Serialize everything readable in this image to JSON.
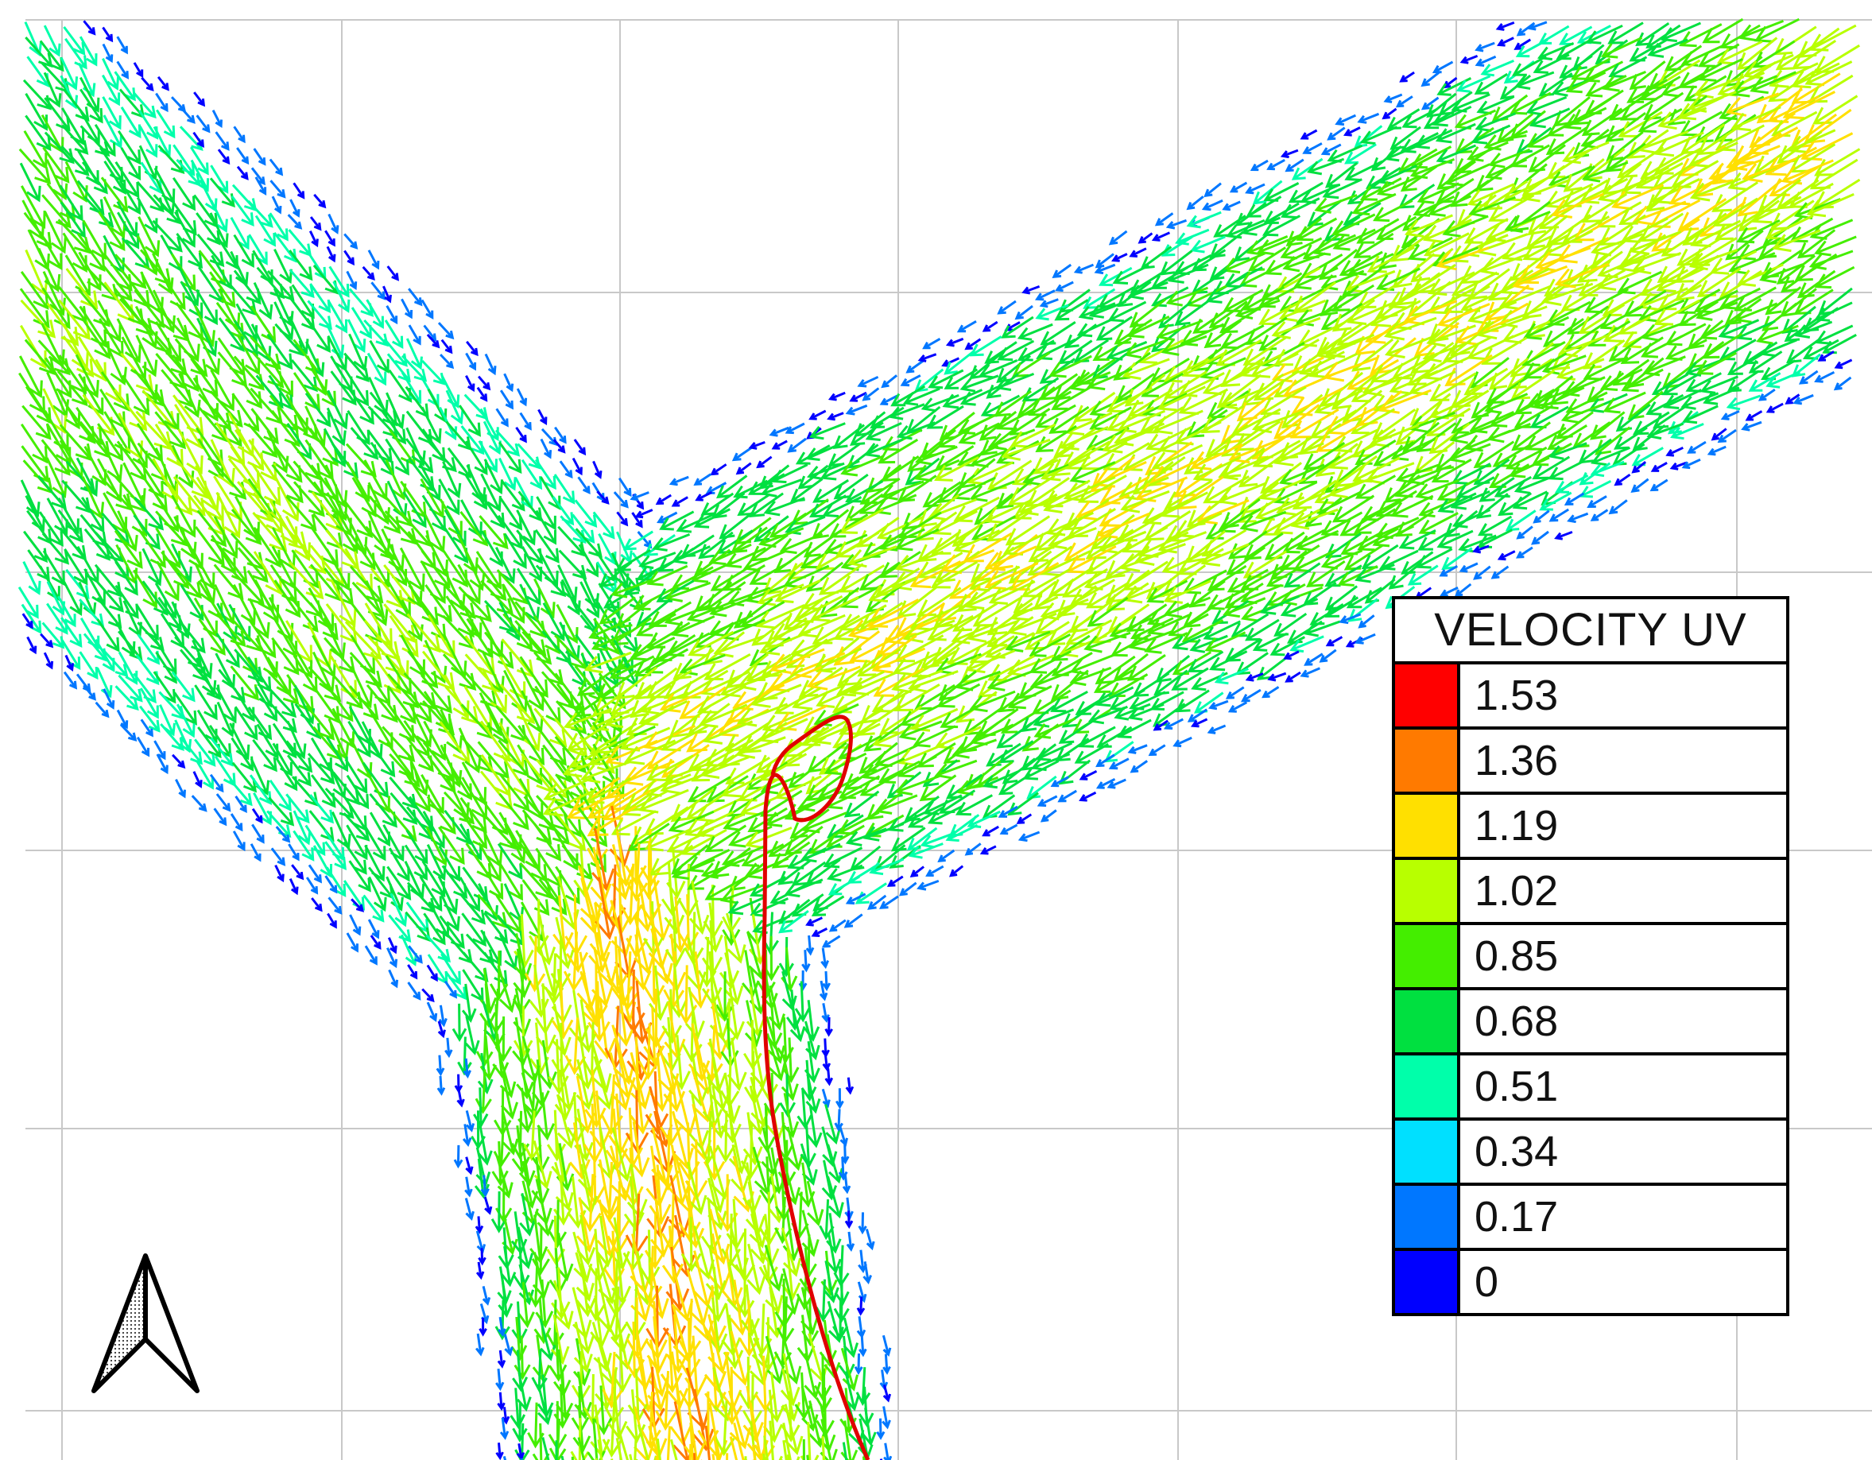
{
  "legend": {
    "title": "VELOCITY UV",
    "entries": [
      {
        "value": "1.53",
        "color": "#ff0000"
      },
      {
        "value": "1.36",
        "color": "#ff7a00"
      },
      {
        "value": "1.19",
        "color": "#ffe000"
      },
      {
        "value": "1.02",
        "color": "#b8ff00"
      },
      {
        "value": "0.85",
        "color": "#44ee00"
      },
      {
        "value": "0.68",
        "color": "#00e040"
      },
      {
        "value": "0.51",
        "color": "#00ffaa"
      },
      {
        "value": "0.34",
        "color": "#00e0ff"
      },
      {
        "value": "0.17",
        "color": "#0077ff"
      },
      {
        "value": "0",
        "color": "#0000ff"
      }
    ]
  },
  "icons": {
    "north_arrow": "north-arrow-icon"
  },
  "colors": {
    "grid": "#c8c8c8",
    "streamline": "#e00000"
  }
}
